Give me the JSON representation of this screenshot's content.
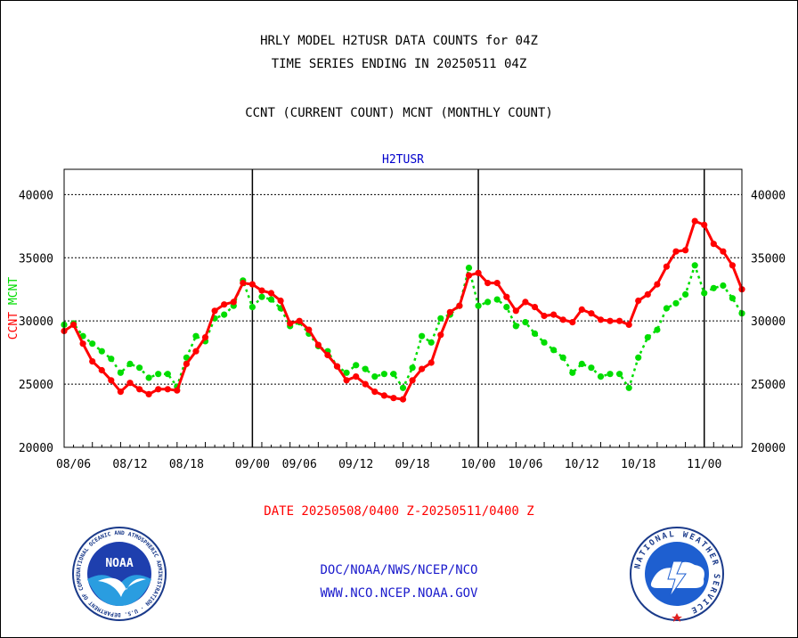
{
  "header": {
    "line1": "HRLY MODEL H2TUSR DATA COUNTS for 04Z",
    "line2": "TIME SERIES ENDING IN 20250511 04Z",
    "line3": "CCNT (CURRENT COUNT) MCNT (MONTHLY COUNT)"
  },
  "footer": {
    "date_range": "DATE 20250508/0400 Z-20250511/0400 Z",
    "org": "DOC/NOAA/NWS/NCEP/NCO",
    "url": "WWW.NCO.NCEP.NOAA.GOV"
  },
  "logos": {
    "noaa_text": "NOAA",
    "noaa_ring": "NATIONAL OCEANIC AND ATMOSPHERIC ADMINISTRATION · U.S. DEPARTMENT OF COMMERCE",
    "nws_ring": "NATIONAL WEATHER SERVICE"
  },
  "colors": {
    "ccnt": "#ff0000",
    "mcnt": "#00dd00",
    "title": "#0000cc",
    "axis": "#000000"
  },
  "chart_data": {
    "type": "line",
    "title": "H2TUSR",
    "ylabel_left": [
      "CCNT",
      "MCNT"
    ],
    "ylim": [
      20000,
      42000
    ],
    "yticks": [
      20000,
      25000,
      30000,
      35000,
      40000
    ],
    "ytick_labels": [
      "20000",
      "25000",
      "30000",
      "35000",
      "40000"
    ],
    "xlim": [
      0,
      72
    ],
    "xtick_positions": [
      3,
      15,
      27,
      39,
      51,
      63
    ],
    "xtick_labels_lower": [
      "08/06",
      "08/12",
      "08/18",
      "09/06",
      "09/12",
      "09/18",
      "10/06",
      "10/12",
      "10/18"
    ],
    "xtick_labels_lower_positions": [
      1,
      7,
      13,
      25,
      31,
      37,
      49,
      55,
      61
    ],
    "day_boundaries": [
      {
        "x": 20,
        "label": "09/00"
      },
      {
        "x": 44,
        "label": "10/00"
      },
      {
        "x": 68,
        "label": "11/00"
      }
    ],
    "grid": true,
    "series": [
      {
        "name": "CCNT",
        "color": "#ff0000",
        "x": [
          0,
          1,
          2,
          3,
          4,
          5,
          6,
          7,
          8,
          9,
          10,
          11,
          12,
          13,
          14,
          15,
          16,
          17,
          18,
          19,
          20,
          21,
          22,
          23,
          24,
          25,
          26,
          27,
          28,
          29,
          30,
          31,
          32,
          33,
          34,
          35,
          36,
          37,
          38,
          39,
          40,
          41,
          42,
          43,
          44,
          45,
          46,
          47,
          48,
          49,
          50,
          51,
          52,
          53,
          54,
          55,
          56,
          57,
          58,
          59,
          60,
          61,
          62,
          63,
          64,
          65,
          66,
          67,
          68,
          69,
          70,
          71,
          72
        ],
        "values": [
          29200,
          29700,
          28200,
          26800,
          26100,
          25300,
          24400,
          25100,
          24600,
          24200,
          24600,
          24600,
          24500,
          26600,
          27600,
          28700,
          30800,
          31300,
          31500,
          33000,
          32900,
          32400,
          32200,
          31600,
          29800,
          30000,
          29300,
          28100,
          27300,
          26400,
          25300,
          25600,
          25000,
          24400,
          24100,
          23900,
          23800,
          25300,
          26200,
          26700,
          28900,
          30700,
          31200,
          33600,
          33800,
          33000,
          33000,
          31900,
          30800,
          31500,
          31100,
          30400,
          30500,
          30100,
          29900,
          30900,
          30600,
          30100,
          30000,
          30000,
          29700,
          31600,
          32100,
          32900,
          34300,
          35500,
          35600,
          37900,
          37600,
          36100,
          35500,
          34400,
          32500
        ]
      },
      {
        "name": "MCNT",
        "color": "#00dd00",
        "x": [
          0,
          1,
          2,
          3,
          4,
          5,
          6,
          7,
          8,
          9,
          10,
          11,
          12,
          13,
          14,
          15,
          16,
          17,
          18,
          19,
          20,
          21,
          22,
          23,
          24,
          25,
          26,
          27,
          28,
          29,
          30,
          31,
          32,
          33,
          34,
          35,
          36,
          37,
          38,
          39,
          40,
          41,
          42,
          43,
          44,
          45,
          46,
          47,
          48,
          49,
          50,
          51,
          52,
          53,
          54,
          55,
          56,
          57,
          58,
          59,
          60,
          61,
          62,
          63,
          64,
          65,
          66,
          67,
          68,
          69,
          70,
          71,
          72
        ],
        "values": [
          29700,
          29800,
          28800,
          28200,
          27600,
          27000,
          25900,
          26600,
          26300,
          25500,
          25800,
          25800,
          24800,
          27100,
          28800,
          28400,
          30200,
          30500,
          31200,
          33200,
          31100,
          31900,
          31700,
          31000,
          29600,
          29900,
          29000,
          28000,
          27600,
          26400,
          25900,
          26500,
          26200,
          25600,
          25800,
          25800,
          24700,
          26300,
          28800,
          28300,
          30200,
          30500,
          31200,
          34200,
          31200,
          31500,
          31700,
          31100,
          29600,
          29900,
          29000,
          28300,
          27700,
          27100,
          25900,
          26600,
          26300,
          25600,
          25800,
          25800,
          24700,
          27100,
          28700,
          29300,
          31000,
          31400,
          32100,
          34400,
          32200,
          32600,
          32800,
          31800,
          30600
        ]
      }
    ]
  }
}
